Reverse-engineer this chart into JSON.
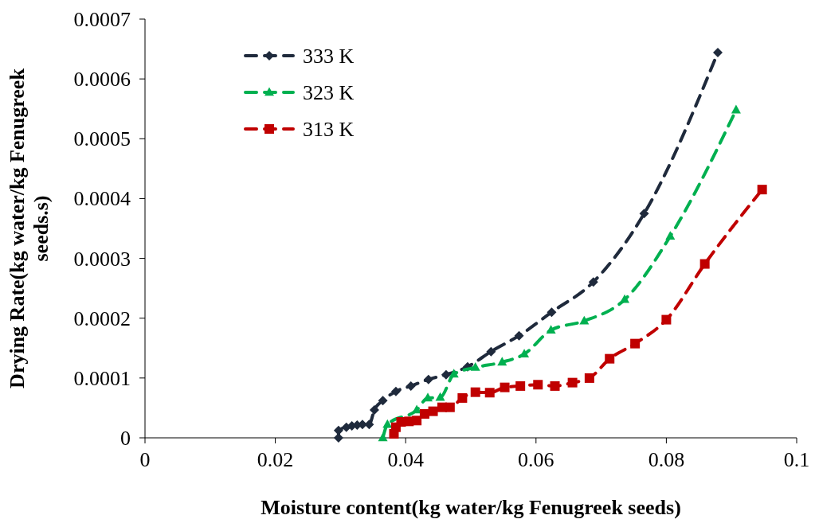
{
  "chart_data": {
    "type": "line",
    "xlabel": "Moisture content(kg water/kg Fenugreek seeds)",
    "ylabel": "Drying Rate(kg water/kg Fenugreek seeds.s)",
    "xlim": [
      0,
      0.1
    ],
    "xticks": [
      0,
      0.02,
      0.04,
      0.06,
      0.08,
      0.1
    ],
    "ylim": [
      0,
      0.0007
    ],
    "yticks": [
      0,
      0.0001,
      0.0002,
      0.0003,
      0.0004,
      0.0005,
      0.0006,
      0.0007
    ],
    "grid": false,
    "legend": "top left",
    "line_style": "dashed",
    "series": [
      {
        "name": "333 K",
        "color": "#1f2a3c",
        "marker": "diamond",
        "x": [
          0.0297,
          0.0297,
          0.0309,
          0.03175,
          0.03256,
          0.03337,
          0.0344,
          0.0352,
          0.0365,
          0.0385,
          0.0408,
          0.0435,
          0.0462,
          0.0495,
          0.0531,
          0.0574,
          0.0624,
          0.0688,
          0.0766,
          0.0879
        ],
        "values": [
          0,
          1.24e-05,
          1.77e-05,
          2e-05,
          2.13e-05,
          2.22e-05,
          2.22e-05,
          4.66e-05,
          6.22e-05,
          7.76e-05,
          8.66e-05,
          9.76e-05,
          0.0001056,
          0.0001189,
          0.0001442,
          0.0001708,
          0.00021,
          0.0002606,
          0.000375,
          0.000644
        ]
      },
      {
        "name": "323 K",
        "color": "#00b050",
        "marker": "triangle",
        "x": [
          0.0365,
          0.0372,
          0.0417,
          0.0434,
          0.0453,
          0.0474,
          0.0507,
          0.0548,
          0.0582,
          0.0623,
          0.0674,
          0.0736,
          0.0806,
          0.0907
        ],
        "values": [
          0,
          2.22e-05,
          4.66e-05,
          6.66e-05,
          6.75e-05,
          0.0001065,
          0.0001176,
          0.0001265,
          0.00014,
          0.00018,
          0.0001953,
          0.000231,
          0.000337,
          0.000548
        ]
      },
      {
        "name": "313 K",
        "color": "#c00000",
        "marker": "square",
        "x": [
          0.0382,
          0.0385,
          0.0393,
          0.0405,
          0.0417,
          0.0429,
          0.0442,
          0.0456,
          0.0468,
          0.0487,
          0.0507,
          0.0529,
          0.0552,
          0.0576,
          0.0603,
          0.0629,
          0.0656,
          0.0682,
          0.0713,
          0.0752,
          0.08,
          0.0859,
          0.0947
        ],
        "values": [
          6.7e-06,
          1.77e-05,
          2.66e-05,
          2.75e-05,
          2.89e-05,
          4e-05,
          4.44e-05,
          5.1e-05,
          5.1e-05,
          6.66e-05,
          7.63e-05,
          7.55e-05,
          8.43e-05,
          8.66e-05,
          8.88e-05,
          8.66e-05,
          9.23e-05,
          9.99e-05,
          0.0001322,
          0.0001575,
          0.0001975,
          0.0002907,
          0.000415
        ]
      }
    ]
  }
}
